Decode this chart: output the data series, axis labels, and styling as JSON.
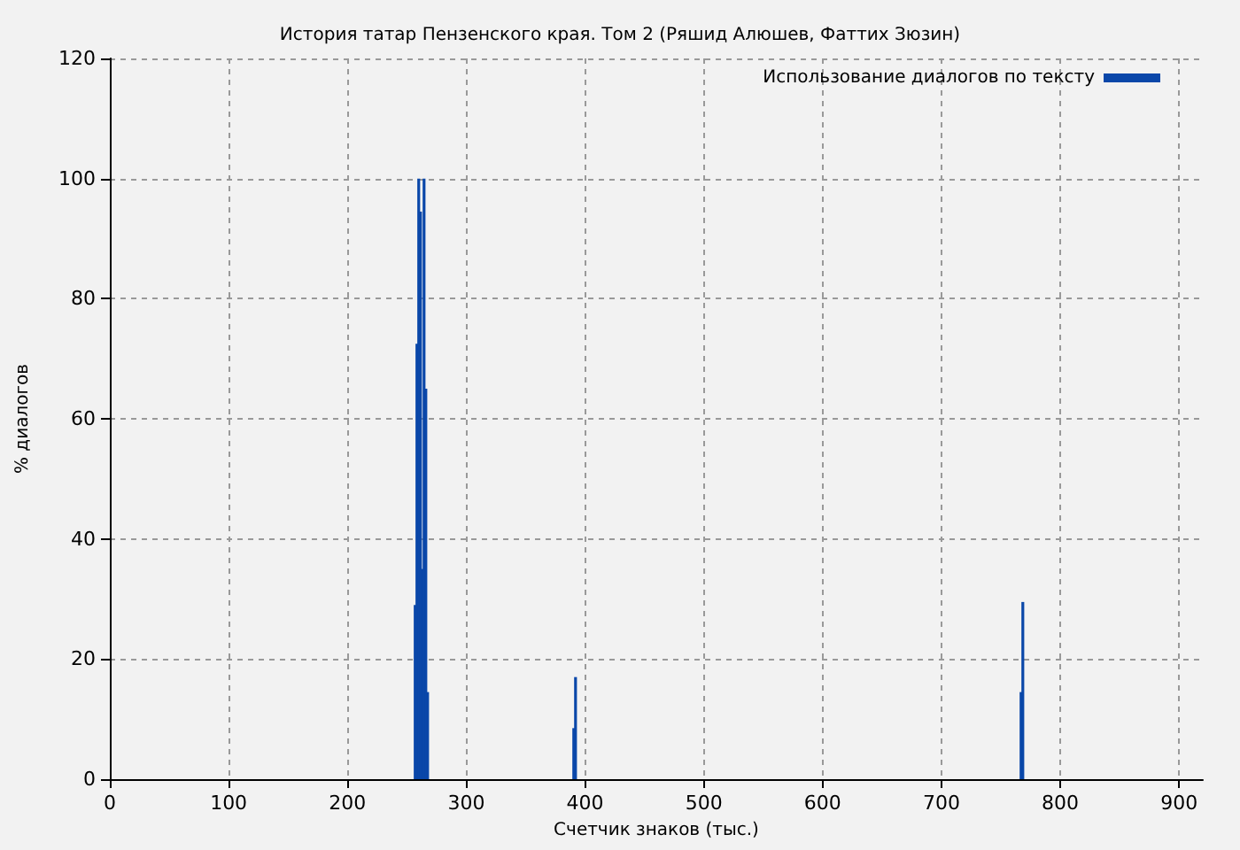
{
  "chart_data": {
    "type": "bar",
    "title": "История татар Пензенского края. Том 2 (Ряшид Алюшев, Фаттих Зюзин)",
    "xlabel": "Счетчик знаков (тыс.)",
    "ylabel": "% диалогов",
    "series": [
      {
        "name": "Использование диалогов по тексту",
        "color": "#0a47a9",
        "x": [
          257,
          258.5,
          260,
          261.5,
          263,
          264.5,
          266,
          267.5,
          390.5,
          392,
          767,
          768.5
        ],
        "values": [
          29,
          72.5,
          100,
          94.5,
          35,
          100,
          65,
          14.5,
          8.5,
          17,
          14.5,
          29.5
        ]
      }
    ],
    "xlim": [
      0,
      920
    ],
    "xticks": [
      0,
      100,
      200,
      300,
      400,
      500,
      600,
      700,
      800,
      900
    ],
    "ylim": [
      0,
      120
    ],
    "yticks": [
      0,
      20,
      40,
      60,
      80,
      100,
      120
    ],
    "grid": true,
    "legend": "top right"
  }
}
